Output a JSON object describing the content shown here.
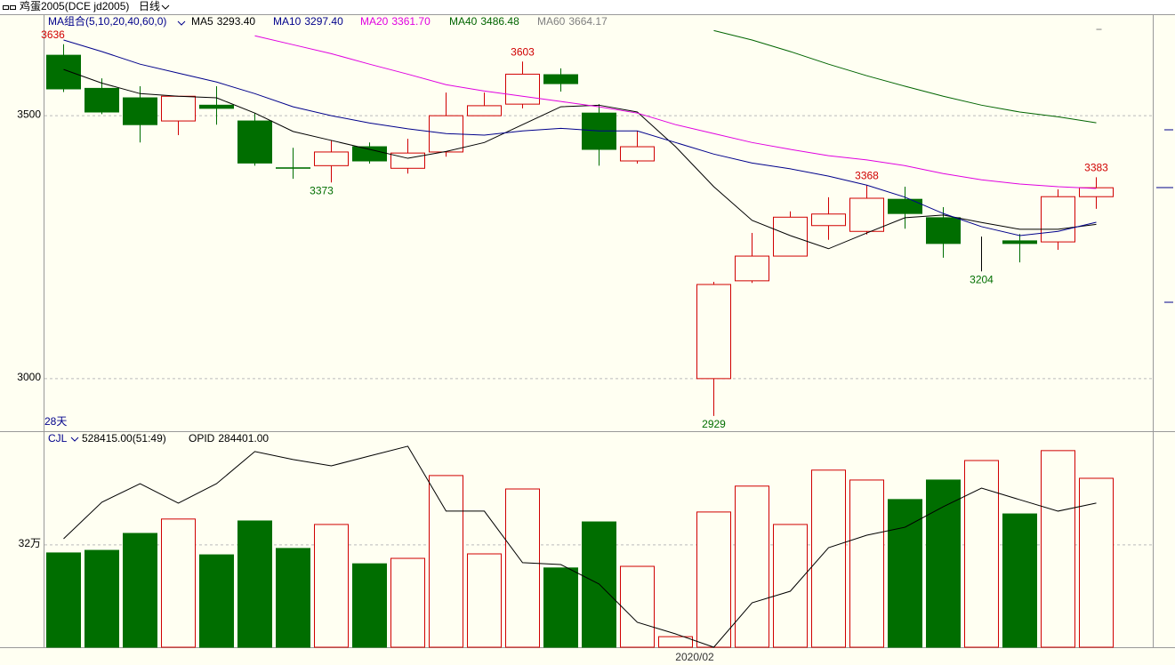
{
  "header": {
    "symbol": "鸡蛋2005(DCE jd2005)",
    "period": "日线"
  },
  "chart_data": [
    {
      "type": "candlestick",
      "legend_title": "MA组合(5,10,20,40,60,0)",
      "count_label": "28天",
      "categories": [
        null,
        null,
        null,
        null,
        null,
        null,
        null,
        null,
        null,
        null,
        null,
        null,
        null,
        null,
        null,
        null,
        null,
        "2020/02",
        null,
        null,
        null,
        null,
        null,
        null,
        null,
        null,
        null,
        null
      ],
      "open": [
        3615,
        3552,
        3534,
        3490,
        3520,
        3490,
        3401,
        3405,
        3441,
        3400,
        3431,
        3500,
        3522,
        3578,
        3505,
        3414,
        3203,
        3000,
        3186,
        3233,
        3291,
        3280,
        3341,
        3306,
        3243,
        3262,
        3260,
        3346
      ],
      "high": [
        3636,
        3571,
        3556,
        3537,
        3556,
        3505,
        3439,
        3453,
        3449,
        3456,
        3544,
        3544,
        3603,
        3590,
        3522,
        3471,
        3203,
        3184,
        3277,
        3318,
        3345,
        3368,
        3365,
        3326,
        3270,
        3275,
        3360,
        3383
      ],
      "low": [
        3545,
        3503,
        3449,
        3463,
        3483,
        3405,
        3380,
        3373,
        3409,
        3390,
        3422,
        3500,
        3514,
        3546,
        3405,
        3409,
        3203,
        2929,
        3182,
        3233,
        3264,
        3274,
        3285,
        3230,
        3204,
        3221,
        3245,
        3323
      ],
      "close": [
        3551,
        3507,
        3483,
        3537,
        3514,
        3410,
        3400,
        3431,
        3414,
        3429,
        3500,
        3519,
        3579,
        3561,
        3436,
        3441,
        3203,
        3179,
        3233,
        3307,
        3313,
        3343,
        3314,
        3257,
        3243,
        3257,
        3346,
        3363
      ],
      "high_labels": [
        "3636",
        null,
        null,
        null,
        null,
        null,
        null,
        null,
        null,
        null,
        null,
        null,
        "3603",
        null,
        null,
        null,
        null,
        null,
        null,
        null,
        null,
        "3368",
        null,
        null,
        null,
        null,
        null,
        "3383"
      ],
      "low_labels": [
        null,
        null,
        null,
        null,
        null,
        null,
        null,
        "3373",
        null,
        null,
        null,
        null,
        null,
        null,
        null,
        null,
        null,
        "2929",
        null,
        null,
        null,
        null,
        null,
        null,
        "3204",
        null,
        null,
        null
      ],
      "up_color": "#d00000",
      "down_color": "#006e00",
      "flat_color": "#000000",
      "ylim": [
        2900,
        3693
      ],
      "yticks": [
        3000,
        3500
      ],
      "grid": true,
      "series": [
        {
          "name": "MA5",
          "color": "#000000",
          "last_label": "3293.40",
          "values": [
            3588,
            3562,
            3542,
            3537,
            3534,
            3505,
            3470,
            3453,
            3436,
            3419,
            3432,
            3449,
            3483,
            3517,
            3520,
            3507,
            3441,
            3365,
            3301,
            3272,
            3247,
            3277,
            3306,
            3311,
            3297,
            3284,
            3284,
            3293.4
          ]
        },
        {
          "name": "MA10",
          "color": "#00008b",
          "last_label": "3297.40",
          "values": [
            3644,
            3622,
            3598,
            3581,
            3564,
            3542,
            3517,
            3500,
            3486,
            3475,
            3466,
            3463,
            3471,
            3476,
            3471,
            3471,
            3449,
            3427,
            3410,
            3399,
            3385,
            3368,
            3345,
            3314,
            3289,
            3272,
            3280,
            3297.4
          ]
        },
        {
          "name": "MA20",
          "color": "#e000e0",
          "last_label": "3361.70",
          "values": [
            null,
            null,
            null,
            null,
            null,
            3652,
            3635,
            3618,
            3598,
            3579,
            3559,
            3547,
            3537,
            3527,
            3517,
            3505,
            3483,
            3466,
            3449,
            3436,
            3424,
            3416,
            3405,
            3390,
            3378,
            3370,
            3365,
            3361.7
          ]
        },
        {
          "name": "MA40",
          "color": "#006400",
          "last_label": "3486.48",
          "values": [
            null,
            null,
            null,
            null,
            null,
            null,
            null,
            null,
            null,
            null,
            null,
            null,
            null,
            null,
            null,
            null,
            null,
            3662,
            3644,
            3622,
            3598,
            3576,
            3556,
            3537,
            3520,
            3507,
            3498,
            3486.48
          ]
        },
        {
          "name": "MA60",
          "color": "#808080",
          "last_label": "3664.17",
          "values": [
            null,
            null,
            null,
            null,
            null,
            null,
            null,
            null,
            null,
            null,
            null,
            null,
            null,
            null,
            null,
            null,
            null,
            null,
            null,
            null,
            null,
            null,
            null,
            null,
            null,
            null,
            null,
            3664.17
          ]
        }
      ]
    },
    {
      "type": "bar",
      "ylim": [
        0,
        673000
      ],
      "yticks": [
        {
          "value": 320000,
          "label": "32万"
        }
      ],
      "grid": true,
      "y2lim": [
        200000,
        326000
      ],
      "series": [
        {
          "name": "CJL",
          "color": "#00008b",
          "last_label": "528415.00(51:49)",
          "values": [
            295000,
            303000,
            356000,
            401000,
            289000,
            395000,
            309000,
            384000,
            261000,
            278000,
            537000,
            292000,
            495000,
            248000,
            392000,
            253000,
            33000,
            423000,
            504000,
            384000,
            554000,
            523000,
            462000,
            523000,
            584000,
            417000,
            615000,
            528415
          ]
        },
        {
          "name": "OPID",
          "color": "#000000",
          "axis": "y2",
          "last_label": "284401.00",
          "values": [
            263500,
            284900,
            295800,
            284400,
            295800,
            314600,
            309900,
            306200,
            312000,
            317700,
            279700,
            279700,
            249500,
            248400,
            237000,
            214600,
            207800,
            200000,
            226000,
            232800,
            258300,
            265600,
            270300,
            282300,
            293200,
            286400,
            279700,
            284401
          ]
        }
      ]
    }
  ]
}
